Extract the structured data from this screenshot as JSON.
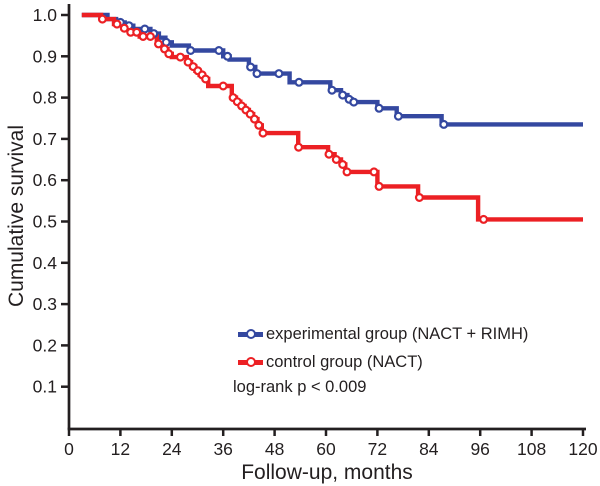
{
  "figure": {
    "x_axis_title": "Follow-up, months",
    "y_axis_title": "Cumulative survival",
    "background": "#ffffff",
    "axis_color": "#231f20"
  },
  "legend": {
    "position": "lower right",
    "items": [
      {
        "label": "experimental group (NACT + RIMH)",
        "color": "#3448a0"
      },
      {
        "label": "control group (NACT)",
        "color": "#ec2024"
      }
    ],
    "note": "log-rank p < 0.009"
  },
  "chart_data": {
    "type": "line",
    "subtype": "kaplan_meier_step",
    "title": "",
    "xlabel": "Follow-up, months",
    "ylabel": "Cumulative survival",
    "xlim": [
      0,
      120
    ],
    "ylim": [
      0,
      1.0
    ],
    "x_ticks": [
      0,
      12,
      24,
      36,
      48,
      60,
      72,
      84,
      96,
      108,
      120
    ],
    "y_ticks": [
      0.1,
      0.2,
      0.3,
      0.4,
      0.5,
      0.6,
      0.7,
      0.8,
      0.9,
      1.0
    ],
    "grid": false,
    "legend_position": "lower right",
    "annotation": "log-rank p < 0.009",
    "series": [
      {
        "id": "experimental",
        "name": "experimental group (NACT + RIMH)",
        "color": "#3448a0",
        "start_month": 3,
        "end_month": 120,
        "final_survival": 0.735,
        "steps": [
          [
            3,
            1.0
          ],
          [
            9,
            0.99
          ],
          [
            11,
            0.982
          ],
          [
            13,
            0.974
          ],
          [
            15,
            0.966
          ],
          [
            19,
            0.955
          ],
          [
            21,
            0.945
          ],
          [
            22.5,
            0.934
          ],
          [
            24,
            0.926
          ],
          [
            28,
            0.914
          ],
          [
            36,
            0.9
          ],
          [
            37.5,
            0.892
          ],
          [
            42,
            0.874
          ],
          [
            43.5,
            0.858
          ],
          [
            51.5,
            0.837
          ],
          [
            61,
            0.818
          ],
          [
            63.5,
            0.806
          ],
          [
            65,
            0.796
          ],
          [
            66,
            0.789
          ],
          [
            72,
            0.774
          ],
          [
            76.5,
            0.755
          ],
          [
            87,
            0.735
          ]
        ],
        "censors": [
          [
            12,
            0.982
          ],
          [
            14,
            0.974
          ],
          [
            17.7,
            0.966
          ],
          [
            19.8,
            0.955
          ],
          [
            22.7,
            0.934
          ],
          [
            28.4,
            0.914
          ],
          [
            35,
            0.914
          ],
          [
            37,
            0.9
          ],
          [
            42.4,
            0.874
          ],
          [
            43.9,
            0.858
          ],
          [
            49,
            0.858
          ],
          [
            53.7,
            0.837
          ],
          [
            61.4,
            0.818
          ],
          [
            63.9,
            0.806
          ],
          [
            65.4,
            0.796
          ],
          [
            66.5,
            0.789
          ],
          [
            72.4,
            0.774
          ],
          [
            76.9,
            0.755
          ],
          [
            87.5,
            0.735
          ]
        ]
      },
      {
        "id": "control",
        "name": "control group (NACT)",
        "color": "#ec2024",
        "start_month": 3,
        "end_month": 120,
        "final_survival": 0.505,
        "steps": [
          [
            3,
            1.0
          ],
          [
            7.5,
            0.99
          ],
          [
            10.5,
            0.978
          ],
          [
            12.5,
            0.968
          ],
          [
            14,
            0.958
          ],
          [
            16.5,
            0.948
          ],
          [
            20.5,
            0.93
          ],
          [
            22,
            0.918
          ],
          [
            23,
            0.906
          ],
          [
            24,
            0.898
          ],
          [
            27.5,
            0.886
          ],
          [
            28.5,
            0.875
          ],
          [
            29.5,
            0.865
          ],
          [
            30.5,
            0.855
          ],
          [
            31.5,
            0.845
          ],
          [
            32.5,
            0.828
          ],
          [
            38,
            0.8
          ],
          [
            39,
            0.79
          ],
          [
            40,
            0.78
          ],
          [
            41,
            0.77
          ],
          [
            42,
            0.76
          ],
          [
            43,
            0.748
          ],
          [
            44,
            0.733
          ],
          [
            45,
            0.714
          ],
          [
            53.5,
            0.68
          ],
          [
            60.5,
            0.663
          ],
          [
            62,
            0.65
          ],
          [
            63.5,
            0.638
          ],
          [
            64.5,
            0.62
          ],
          [
            72,
            0.585
          ],
          [
            81.5,
            0.558
          ],
          [
            95.5,
            0.505
          ]
        ],
        "censors": [
          [
            7.8,
            0.99
          ],
          [
            11.2,
            0.978
          ],
          [
            12.9,
            0.968
          ],
          [
            14.4,
            0.958
          ],
          [
            15.8,
            0.958
          ],
          [
            17.3,
            0.948
          ],
          [
            19,
            0.948
          ],
          [
            20.9,
            0.93
          ],
          [
            22.3,
            0.918
          ],
          [
            23.3,
            0.906
          ],
          [
            26,
            0.898
          ],
          [
            27.8,
            0.886
          ],
          [
            29,
            0.875
          ],
          [
            30.1,
            0.865
          ],
          [
            31.1,
            0.855
          ],
          [
            31.9,
            0.845
          ],
          [
            36,
            0.828
          ],
          [
            38.3,
            0.8
          ],
          [
            39.3,
            0.79
          ],
          [
            40.3,
            0.78
          ],
          [
            41.3,
            0.77
          ],
          [
            42.3,
            0.76
          ],
          [
            43.3,
            0.748
          ],
          [
            44.3,
            0.733
          ],
          [
            45.3,
            0.714
          ],
          [
            53.6,
            0.68
          ],
          [
            60.7,
            0.663
          ],
          [
            62.4,
            0.65
          ],
          [
            63.9,
            0.638
          ],
          [
            64.9,
            0.62
          ],
          [
            71.2,
            0.62
          ],
          [
            72.4,
            0.585
          ],
          [
            81.8,
            0.558
          ],
          [
            96.8,
            0.505
          ]
        ]
      }
    ]
  }
}
